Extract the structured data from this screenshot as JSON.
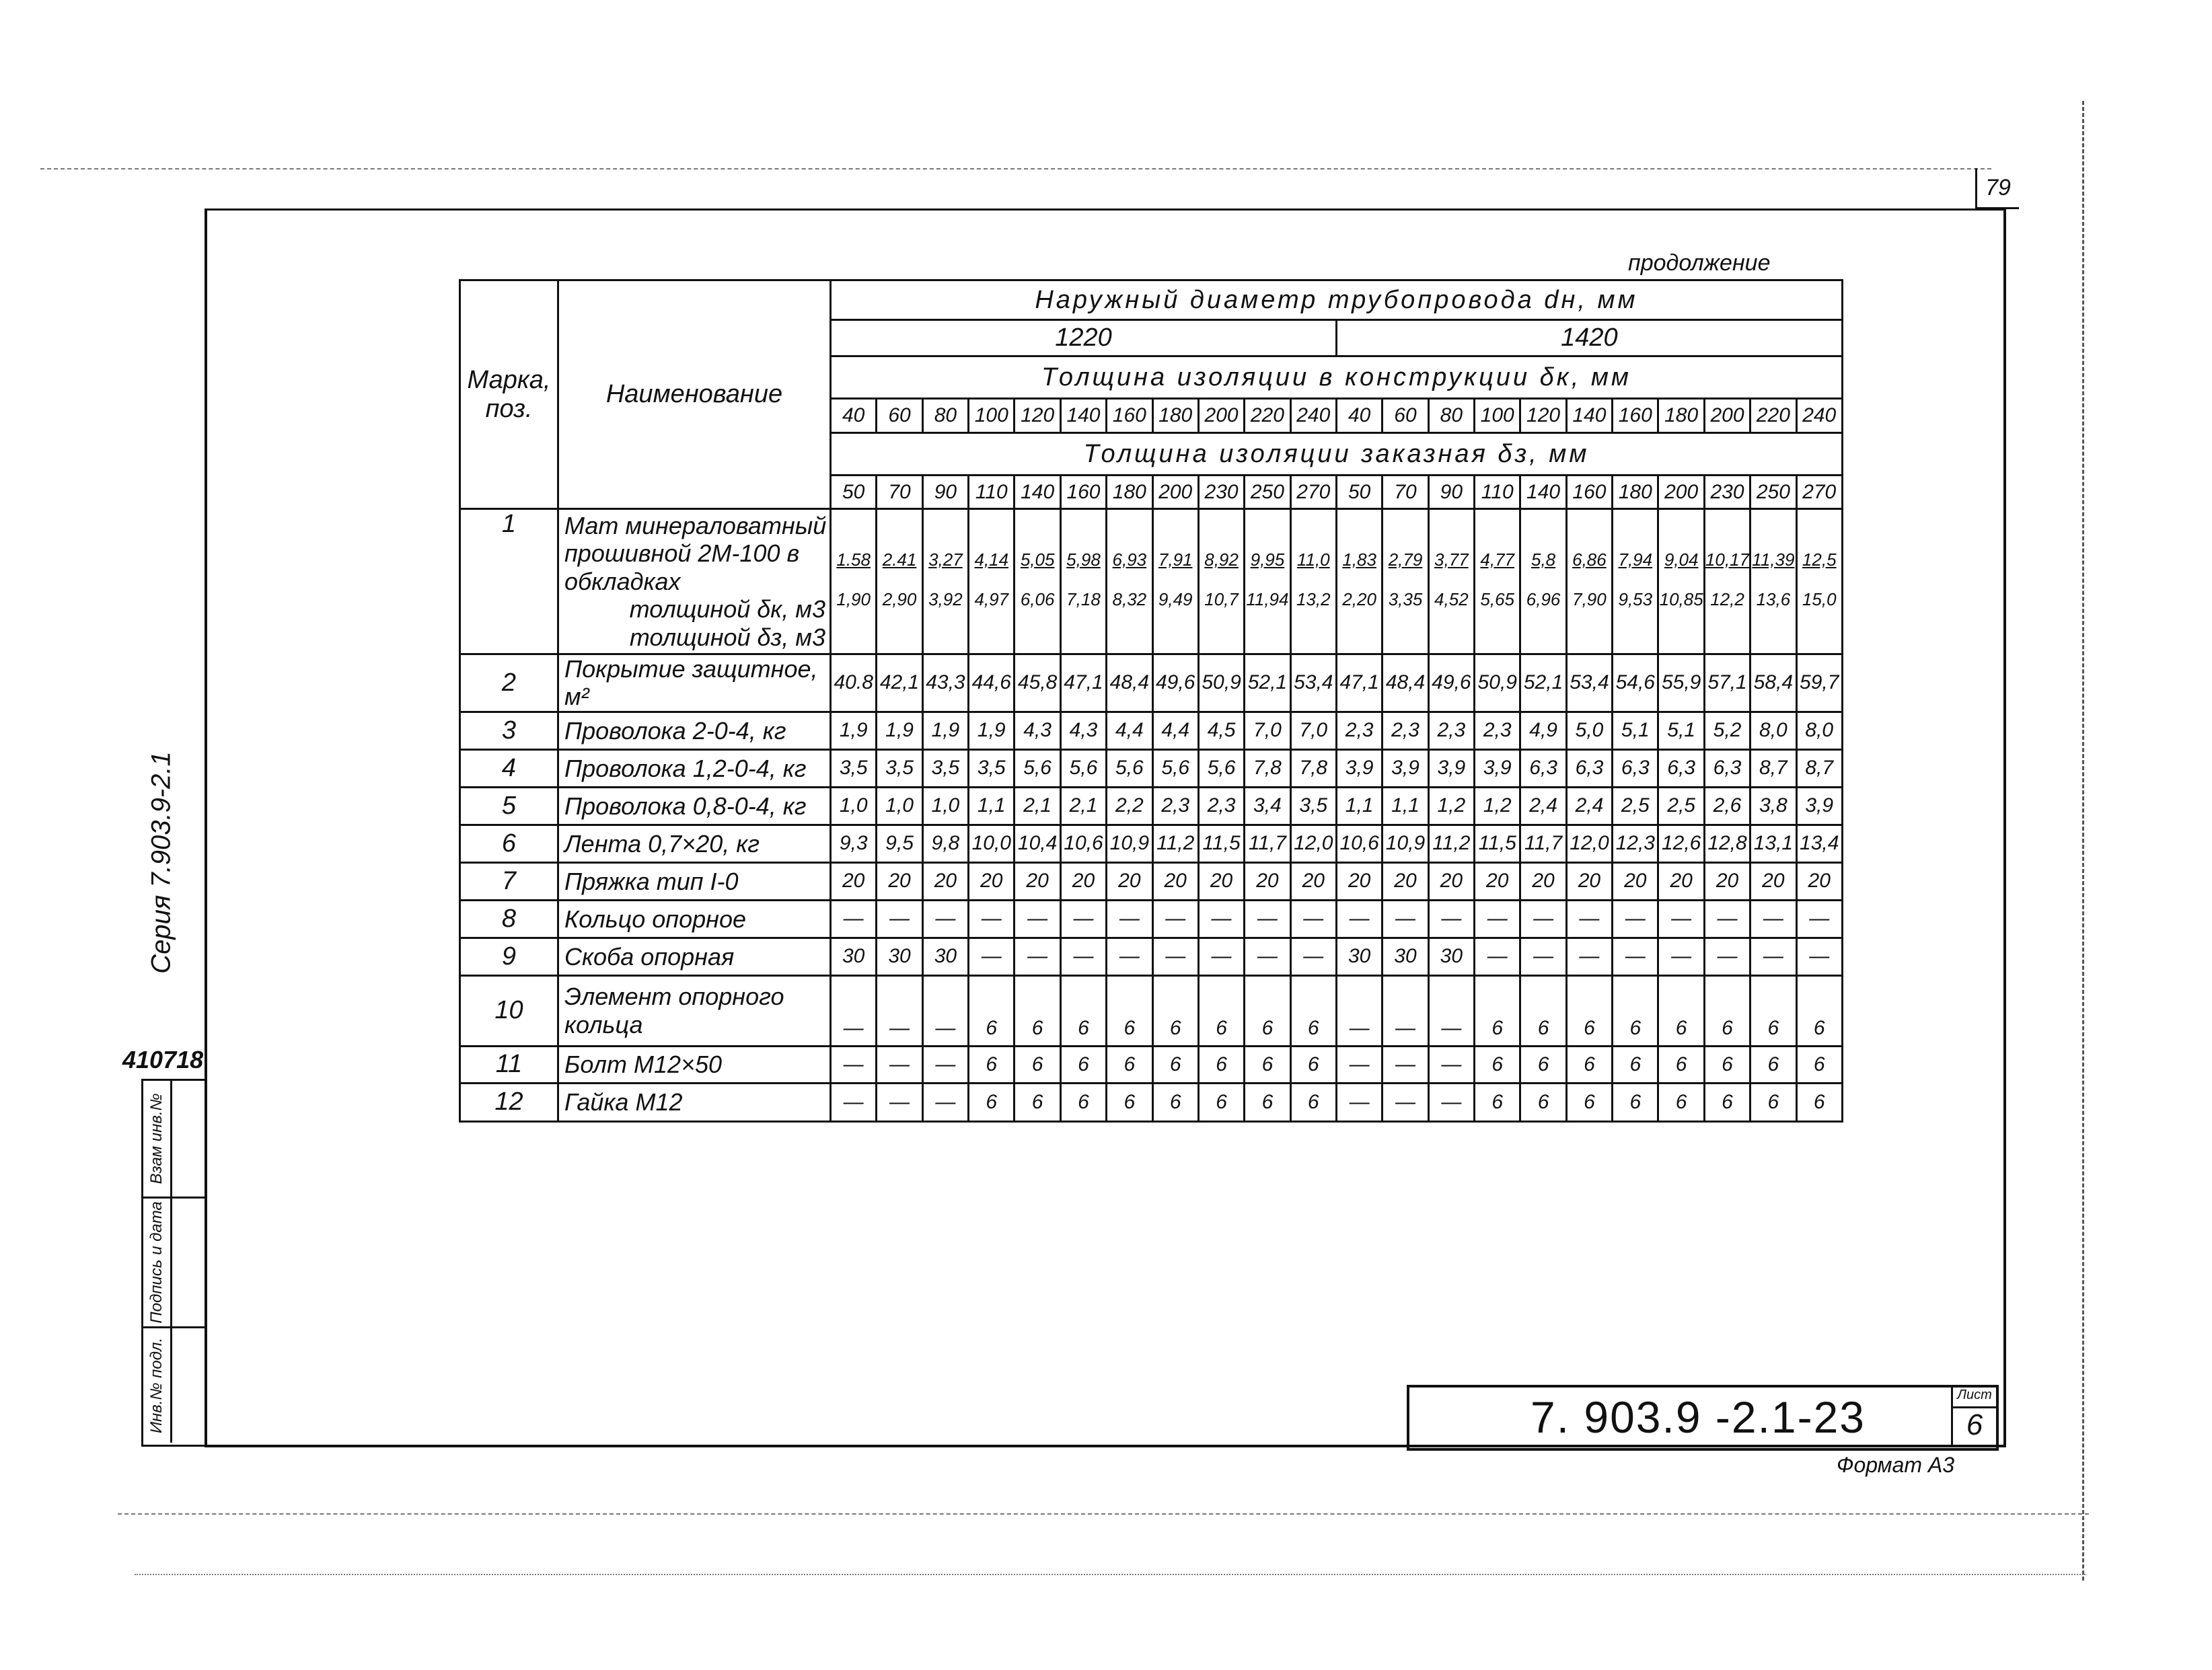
{
  "page_number": "79",
  "continuation": "продолжение",
  "table": {
    "col_mark": "Марка, поз.",
    "col_name": "Наименование",
    "outer_diameter": "Наружный диаметр трубопровода dн, мм",
    "diameters": [
      "1220",
      "1420"
    ],
    "thickness_construction": "Толщина изоляции в конструкции δк, мм",
    "thickness_construction_values": [
      "40",
      "60",
      "80",
      "100",
      "120",
      "140",
      "160",
      "180",
      "200",
      "220",
      "240",
      "40",
      "60",
      "80",
      "100",
      "120",
      "140",
      "160",
      "180",
      "200",
      "220",
      "240"
    ],
    "thickness_ordered": "Толщина изоляции заказная δз, мм",
    "thickness_ordered_values": [
      "50",
      "70",
      "90",
      "110",
      "140",
      "160",
      "180",
      "200",
      "230",
      "250",
      "270",
      "50",
      "70",
      "90",
      "110",
      "140",
      "160",
      "180",
      "200",
      "230",
      "250",
      "270"
    ],
    "row1": {
      "pos": "1",
      "name": "Мат минераловатный прошивной 2М-100 в обкладках",
      "sub_k": "толщиной δк, м3",
      "sub_z": "толщиной δз, м3",
      "values_k": [
        "1.58",
        "2.41",
        "3,27",
        "4,14",
        "5,05",
        "5,98",
        "6,93",
        "7,91",
        "8,92",
        "9,95",
        "11,0",
        "1,83",
        "2,79",
        "3,77",
        "4,77",
        "5,8",
        "6,86",
        "7,94",
        "9,04",
        "10,17",
        "11,39",
        "12,5"
      ],
      "values_z": [
        "1,90",
        "2,90",
        "3,92",
        "4,97",
        "6,06",
        "7,18",
        "8,32",
        "9,49",
        "10,7",
        "11,94",
        "13,2",
        "2,20",
        "3,35",
        "4,52",
        "5,65",
        "6,96",
        "7,90",
        "9,53",
        "10,85",
        "12,2",
        "13,6",
        "15,0"
      ]
    },
    "rows": [
      {
        "pos": "2",
        "name": "Покрытие защитное, м²",
        "values": [
          "40.8",
          "42,1",
          "43,3",
          "44,6",
          "45,8",
          "47,1",
          "48,4",
          "49,6",
          "50,9",
          "52,1",
          "53,4",
          "47,1",
          "48,4",
          "49,6",
          "50,9",
          "52,1",
          "53,4",
          "54,6",
          "55,9",
          "57,1",
          "58,4",
          "59,7"
        ]
      },
      {
        "pos": "3",
        "name": "Проволока 2-0-4, кг",
        "values": [
          "1,9",
          "1,9",
          "1,9",
          "1,9",
          "4,3",
          "4,3",
          "4,4",
          "4,4",
          "4,5",
          "7,0",
          "7,0",
          "2,3",
          "2,3",
          "2,3",
          "2,3",
          "4,9",
          "5,0",
          "5,1",
          "5,1",
          "5,2",
          "8,0",
          "8,0"
        ]
      },
      {
        "pos": "4",
        "name": "Проволока 1,2-0-4, кг",
        "values": [
          "3,5",
          "3,5",
          "3,5",
          "3,5",
          "5,6",
          "5,6",
          "5,6",
          "5,6",
          "5,6",
          "7,8",
          "7,8",
          "3,9",
          "3,9",
          "3,9",
          "3,9",
          "6,3",
          "6,3",
          "6,3",
          "6,3",
          "6,3",
          "8,7",
          "8,7"
        ]
      },
      {
        "pos": "5",
        "name": "Проволока 0,8-0-4, кг",
        "values": [
          "1,0",
          "1,0",
          "1,0",
          "1,1",
          "2,1",
          "2,1",
          "2,2",
          "2,3",
          "2,3",
          "3,4",
          "3,5",
          "1,1",
          "1,1",
          "1,2",
          "1,2",
          "2,4",
          "2,4",
          "2,5",
          "2,5",
          "2,6",
          "3,8",
          "3,9"
        ]
      },
      {
        "pos": "6",
        "name": "Лента 0,7×20, кг",
        "values": [
          "9,3",
          "9,5",
          "9,8",
          "10,0",
          "10,4",
          "10,6",
          "10,9",
          "11,2",
          "11,5",
          "11,7",
          "12,0",
          "10,6",
          "10,9",
          "11,2",
          "11,5",
          "11,7",
          "12,0",
          "12,3",
          "12,6",
          "12,8",
          "13,1",
          "13,4"
        ]
      },
      {
        "pos": "7",
        "name": "Пряжка тип I-0",
        "values": [
          "20",
          "20",
          "20",
          "20",
          "20",
          "20",
          "20",
          "20",
          "20",
          "20",
          "20",
          "20",
          "20",
          "20",
          "20",
          "20",
          "20",
          "20",
          "20",
          "20",
          "20",
          "20"
        ]
      },
      {
        "pos": "8",
        "name": "Кольцо опорное",
        "values": [
          "—",
          "—",
          "—",
          "—",
          "—",
          "—",
          "—",
          "—",
          "—",
          "—",
          "—",
          "—",
          "—",
          "—",
          "—",
          "—",
          "—",
          "—",
          "—",
          "—",
          "—",
          "—"
        ]
      },
      {
        "pos": "9",
        "name": "Скоба опорная",
        "values": [
          "30",
          "30",
          "30",
          "—",
          "—",
          "—",
          "—",
          "—",
          "—",
          "—",
          "—",
          "30",
          "30",
          "30",
          "—",
          "—",
          "—",
          "—",
          "—",
          "—",
          "—",
          "—"
        ]
      },
      {
        "pos": "10",
        "name": "Элемент опорного кольца",
        "values": [
          "—",
          "—",
          "—",
          "6",
          "6",
          "6",
          "6",
          "6",
          "6",
          "6",
          "6",
          "—",
          "—",
          "—",
          "6",
          "6",
          "6",
          "6",
          "6",
          "6",
          "6",
          "6"
        ]
      },
      {
        "pos": "11",
        "name": "Болт М12×50",
        "values": [
          "—",
          "—",
          "—",
          "6",
          "6",
          "6",
          "6",
          "6",
          "6",
          "6",
          "6",
          "—",
          "—",
          "—",
          "6",
          "6",
          "6",
          "6",
          "6",
          "6",
          "6",
          "6"
        ]
      },
      {
        "pos": "12",
        "name": "Гайка М12",
        "values": [
          "—",
          "—",
          "—",
          "6",
          "6",
          "6",
          "6",
          "6",
          "6",
          "6",
          "6",
          "—",
          "—",
          "—",
          "6",
          "6",
          "6",
          "6",
          "6",
          "6",
          "6",
          "6"
        ]
      }
    ]
  },
  "title_block": {
    "code": "7. 903.9 -2.1-23",
    "sheet_label": "Лист",
    "sheet_number": "6",
    "format": "Формат А3"
  },
  "side": {
    "series": "Серия 7.903.9-2.1",
    "inventory_number": "410718",
    "stamp_labels": [
      "Взам инв.№",
      "Подпись и дата",
      "Инв.№ подл."
    ]
  }
}
